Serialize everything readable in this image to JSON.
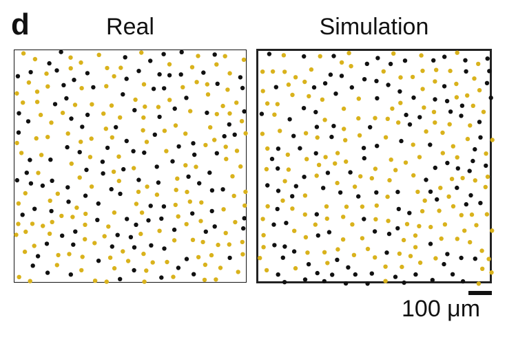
{
  "panel": {
    "letter": "d"
  },
  "titles": {
    "real": "Real",
    "simulation": "Simulation"
  },
  "scale": {
    "label": "100 μm",
    "length_um": 100
  },
  "colors": {
    "cell_type_a": "#111111",
    "cell_type_b": "#d9b21c",
    "frame": "#111111"
  },
  "chart_data": [
    {
      "type": "scatter",
      "title": "Real",
      "xlabel": "",
      "ylabel": "",
      "xlim": [
        0,
        1
      ],
      "ylim": [
        0,
        1
      ],
      "grid": false,
      "approx_counts": {
        "black": 120,
        "yellow": 165
      },
      "series": [
        {
          "color": "#111111",
          "count": 120
        },
        {
          "color": "#d9b21c",
          "count": 165
        }
      ]
    },
    {
      "type": "scatter",
      "title": "Simulation",
      "xlabel": "",
      "ylabel": "",
      "xlim": [
        0,
        1
      ],
      "ylim": [
        0,
        1
      ],
      "grid": false,
      "approx_counts": {
        "black": 125,
        "yellow": 165
      },
      "series": [
        {
          "color": "#111111",
          "count": 125
        },
        {
          "color": "#d9b21c",
          "count": 165
        }
      ]
    }
  ]
}
